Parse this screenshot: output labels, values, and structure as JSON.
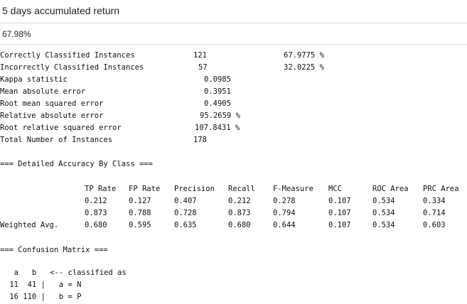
{
  "header": {
    "title": "5 days accumulated return"
  },
  "summary_value": "67.98%",
  "stats": {
    "rows": [
      {
        "label": "Correctly Classified Instances",
        "value1": "121",
        "value2": "67.9775 %"
      },
      {
        "label": "Incorrectly Classified Instances",
        "value1": "57",
        "value2": "32.0225 %"
      },
      {
        "label": "Kappa statistic",
        "value1": "0.0985",
        "value2": ""
      },
      {
        "label": "Mean absolute error",
        "value1": "0.3951",
        "value2": ""
      },
      {
        "label": "Root mean squared error",
        "value1": "0.4905",
        "value2": ""
      },
      {
        "label": "Relative absolute error",
        "value1": "95.2659 %",
        "value2": ""
      },
      {
        "label": "Root relative squared error",
        "value1": "107.8431 %",
        "value2": ""
      },
      {
        "label": "Total Number of Instances",
        "value1": "178",
        "value2": ""
      }
    ]
  },
  "accuracy": {
    "heading": "=== Detailed Accuracy By Class ===",
    "columns": [
      "TP Rate",
      "FP Rate",
      "Precision",
      "Recall",
      "F-Measure",
      "MCC",
      "ROC Area",
      "PRC Area"
    ],
    "rows": [
      {
        "label": "",
        "values": [
          "0.212",
          "0.127",
          "0.407",
          "0.212",
          "0.278",
          "0.107",
          "0.534",
          "0.334"
        ]
      },
      {
        "label": "",
        "values": [
          "0.873",
          "0.788",
          "0.728",
          "0.873",
          "0.794",
          "0.107",
          "0.534",
          "0.714"
        ]
      },
      {
        "label": "Weighted Avg.",
        "values": [
          "0.680",
          "0.595",
          "0.635",
          "0.680",
          "0.644",
          "0.107",
          "0.534",
          "0.603"
        ]
      }
    ]
  },
  "confusion": {
    "heading": "=== Confusion Matrix ===",
    "header_line": "  a   b   <-- classified as",
    "rows": [
      " 11  41 |   a = N",
      " 16 110 |   b = P"
    ]
  }
}
